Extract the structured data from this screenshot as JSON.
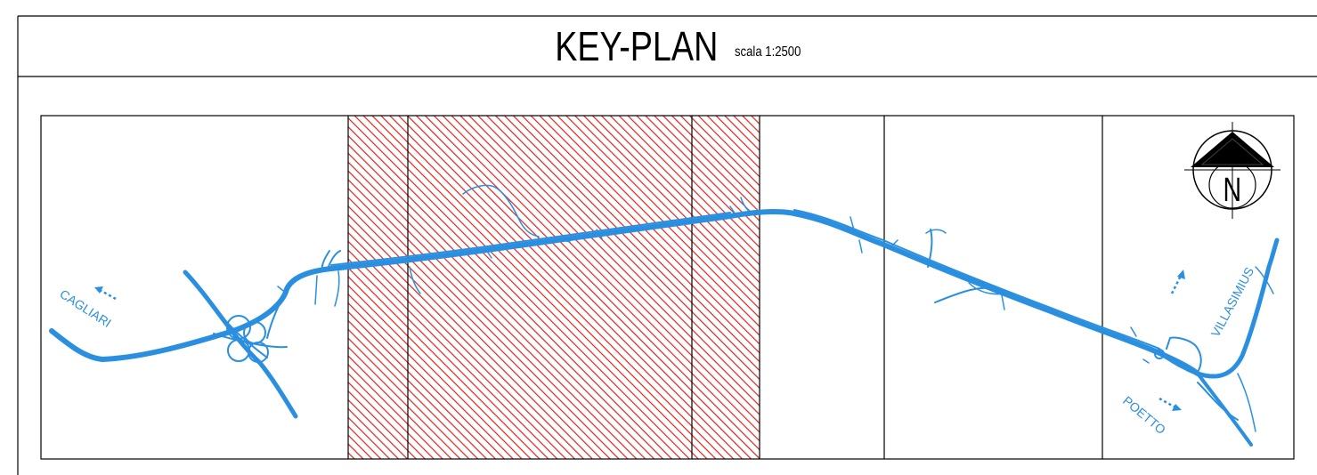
{
  "title": "KEY-PLAN",
  "scale_label": "scala 1:2500",
  "north_label": "N",
  "places": {
    "west": "CAGLIARI",
    "northeast": "VILLASIMIUS",
    "southeast": "POETTO"
  },
  "colors": {
    "road": "#2b8fe0",
    "hatch": "#e0231c",
    "frame": "#000000"
  },
  "icons": {
    "north_arrow": "compass-north-icon",
    "direction_arrow": "dotted-arrow-icon"
  }
}
